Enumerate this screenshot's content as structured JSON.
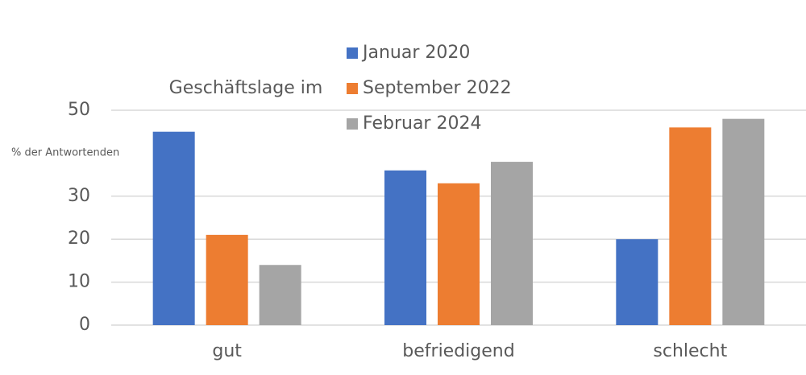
{
  "chart_data": {
    "type": "bar",
    "legend_title": "Geschäftslage im",
    "y_label": "% der Antwortenden",
    "categories": [
      "gut",
      "befriedigend",
      "schlecht"
    ],
    "series": [
      {
        "name": "Januar 2020",
        "color": "#4472c4",
        "values": [
          45,
          36,
          20
        ]
      },
      {
        "name": "September 2022",
        "color": "#ed7d31",
        "values": [
          21,
          33,
          46
        ]
      },
      {
        "name": "Februar 2024",
        "color": "#a5a5a5",
        "values": [
          14,
          38,
          48
        ]
      }
    ],
    "ylim": [
      0,
      50
    ],
    "yticks": [
      0,
      10,
      20,
      30,
      50
    ],
    "grid": true
  }
}
